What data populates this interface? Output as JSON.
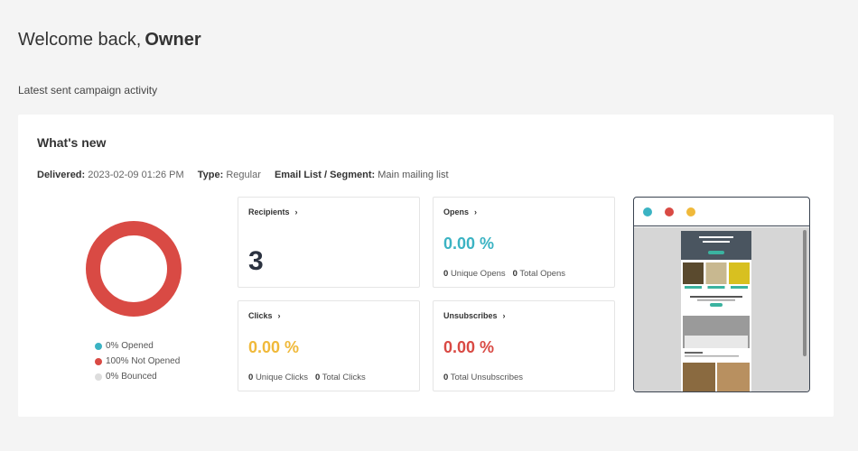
{
  "header": {
    "greeting": "Welcome back,",
    "user": "Owner",
    "subtitle": "Latest sent campaign activity"
  },
  "card": {
    "title": "What's new",
    "meta": {
      "delivered_label": "Delivered:",
      "delivered_value": "2023-02-09 01:26 PM",
      "type_label": "Type:",
      "type_value": "Regular",
      "list_label": "Email List / Segment:",
      "list_value": "Main mailing list"
    },
    "donut": {
      "opened_fraction": 0,
      "not_opened_fraction": 1,
      "bounced_fraction": 0,
      "colors": {
        "opened": "#3bb3c3",
        "not_opened": "#d94a44",
        "bounced": "#dddddd"
      }
    },
    "legend": [
      {
        "label": "0% Opened",
        "color": "#3bb3c3"
      },
      {
        "label": "100% Not Opened",
        "color": "#d94a44"
      },
      {
        "label": "0% Bounced",
        "color": "#dddddd"
      }
    ],
    "stats": {
      "recipients": {
        "label": "Recipients",
        "value": "3"
      },
      "opens": {
        "label": "Opens",
        "value": "0.00 %",
        "color": "#3bb3c3",
        "unique_count": "0",
        "unique_label": "Unique Opens",
        "total_count": "0",
        "total_label": "Total Opens"
      },
      "clicks": {
        "label": "Clicks",
        "value": "0.00 %",
        "color": "#f0b93a",
        "unique_count": "0",
        "unique_label": "Unique Clicks",
        "total_count": "0",
        "total_label": "Total Clicks"
      },
      "unsubscribes": {
        "label": "Unsubscribes",
        "value": "0.00 %",
        "color": "#d94a44",
        "total_count": "0",
        "total_label": "Total Unsubscribes"
      }
    },
    "preview": {
      "dot_colors": [
        "#3bb3c3",
        "#d94a44",
        "#f0b93a"
      ]
    }
  }
}
